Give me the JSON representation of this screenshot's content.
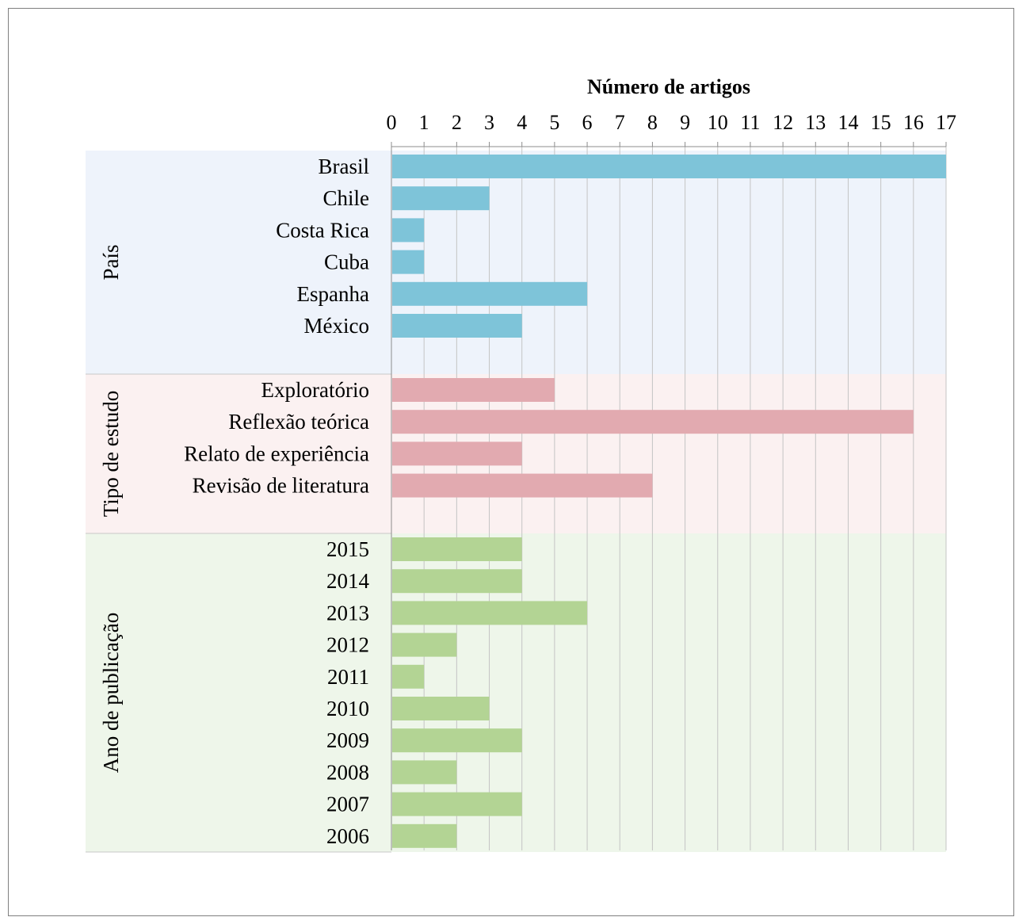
{
  "chart_data": {
    "type": "bar",
    "orientation": "horizontal",
    "title": "Número de artigos",
    "xlim": [
      0,
      17
    ],
    "x_ticks": [
      "0",
      "1",
      "2",
      "3",
      "4",
      "5",
      "6",
      "7",
      "8",
      "9",
      "10",
      "11",
      "12",
      "13",
      "14",
      "15",
      "16",
      "17"
    ],
    "grid": true,
    "groups": [
      {
        "name": "País",
        "color": "#7ec4d9",
        "background": "#eef3fb",
        "categories": [
          "Brasil",
          "Chile",
          "Costa Rica",
          "Cuba",
          "Espanha",
          "México"
        ],
        "values": [
          17,
          3,
          1,
          1,
          6,
          4
        ]
      },
      {
        "name": "Tipo de estudo",
        "color": "#e2aab0",
        "background": "#fbf1f1",
        "categories": [
          "Exploratório",
          "Reflexão teórica",
          "Relato de experiência",
          "Revisão de literatura"
        ],
        "values": [
          5,
          16,
          4,
          8
        ]
      },
      {
        "name": "Ano de publicação",
        "color": "#b3d494",
        "background": "#eef6ea",
        "categories": [
          "2015",
          "2014",
          "2013",
          "2012",
          "2011",
          "2010",
          "2009",
          "2008",
          "2007",
          "2006"
        ],
        "values": [
          4,
          4,
          6,
          2,
          1,
          3,
          4,
          2,
          4,
          2
        ]
      }
    ]
  }
}
